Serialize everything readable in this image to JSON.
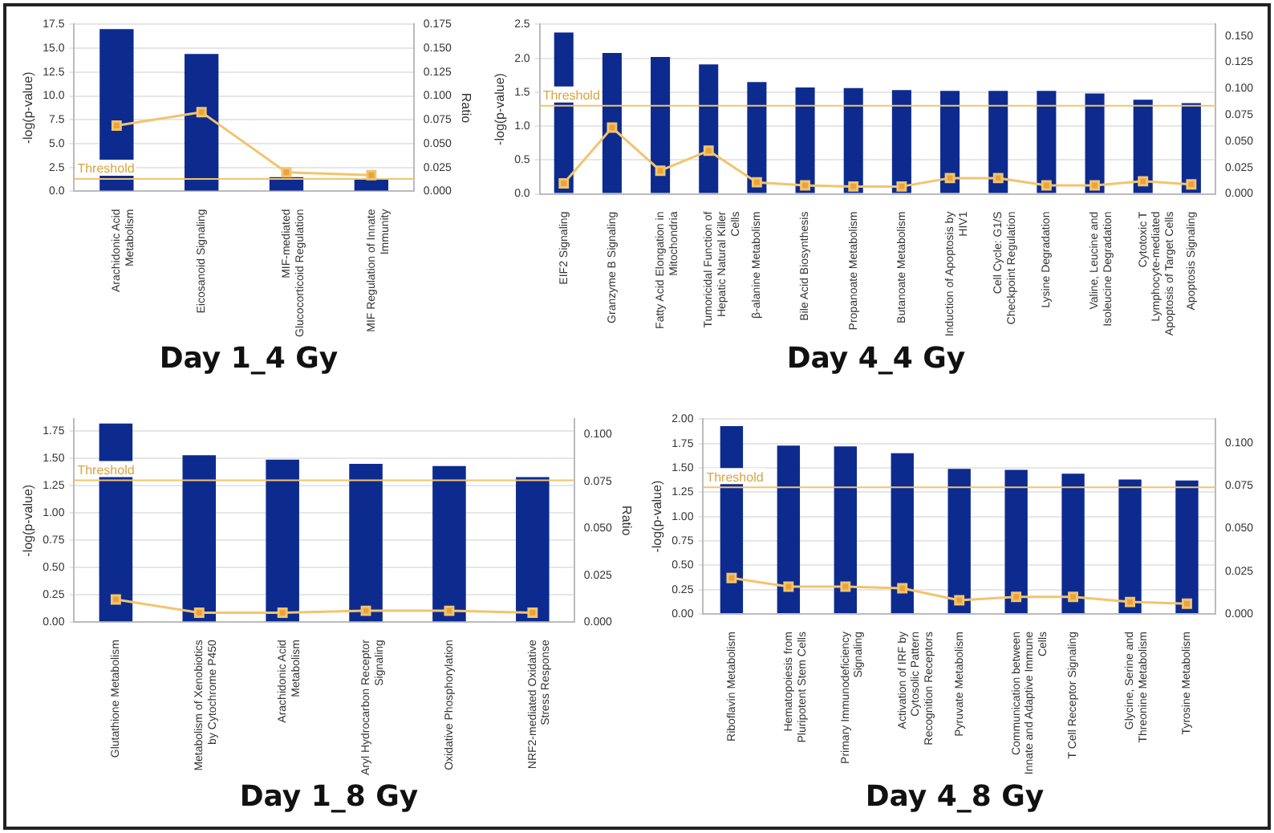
{
  "chart_data": [
    {
      "type": "bar",
      "title": "Day 1_4 Gy",
      "ylabel": "-log(p-value)",
      "y2label": "Ratio",
      "categories": [
        "Arachidonic Acid Metabolism",
        "Eicosanoid Signaling",
        "MIF-mediated Glucocorticoid Regulation",
        "MIF Regulation of Innate Immunity"
      ],
      "series": [
        {
          "color": "#0d2b8f",
          "values": [
            17.0,
            14.4,
            1.5,
            1.3
          ]
        },
        {
          "type": "line",
          "axis": "y2",
          "color": "#f2c46e",
          "values": [
            0.069,
            0.083,
            0.02,
            0.017
          ]
        }
      ],
      "ylim": [
        0,
        17.5
      ],
      "yticks": [
        {
          "value": 0,
          "label": "0.0"
        },
        {
          "value": 2.5,
          "label": "2.5"
        },
        {
          "value": 5,
          "label": "5.0"
        },
        {
          "value": 7.5,
          "label": "7.5"
        },
        {
          "value": 10,
          "label": "10.0"
        },
        {
          "value": 12.5,
          "label": "12.5"
        },
        {
          "value": 15,
          "label": "15.0"
        },
        {
          "value": 17.5,
          "label": "17.5"
        }
      ],
      "y2lim": [
        0,
        0.175
      ],
      "y2ticks": [
        {
          "value": 0,
          "label": "0.000"
        },
        {
          "value": 0.025,
          "label": "0.025"
        },
        {
          "value": 0.05,
          "label": "0.050"
        },
        {
          "value": 0.075,
          "label": "0.075"
        },
        {
          "value": 0.1,
          "label": "0.100"
        },
        {
          "value": 0.125,
          "label": "0.125"
        },
        {
          "value": 0.15,
          "label": "0.150"
        },
        {
          "value": 0.175,
          "label": "0.175"
        }
      ],
      "ref_lines": [
        {
          "axis": "y",
          "value": 1.3,
          "label": "Threshold",
          "color": "#f2c46e"
        }
      ],
      "grid": "y",
      "marker": "square"
    },
    {
      "type": "bar",
      "title": "Day 4_4 Gy",
      "ylabel": "-log(p-value)",
      "categories": [
        "EIF2 Signaling",
        "Granzyme B Signaling",
        "Fatty Acid Elongation in Mitochondria",
        "Tumoricidal Function of Hepatic Natural Killer Cells",
        "β-alanine Metabolism",
        "Bile Acid Biosynthesis",
        "Propanoate Metabolism",
        "Butanoate Metabolism",
        "Induction of Apoptosis by HIV1",
        "Cell Cycle: G1/S Checkpoint Regulation",
        "Lysine Degradation",
        "Valine, Leucine and Isoleucine Degradation",
        "Cytotoxic T Lymphocyte-mediated Apoptosis of Target Cells",
        "Apoptosis Signaling"
      ],
      "series": [
        {
          "color": "#0d2b8f",
          "values": [
            2.38,
            2.08,
            2.02,
            1.91,
            1.65,
            1.57,
            1.56,
            1.53,
            1.52,
            1.52,
            1.52,
            1.48,
            1.39,
            1.34
          ]
        },
        {
          "type": "line",
          "axis": "y2",
          "color": "#f2c46e",
          "values": [
            0.01,
            0.063,
            0.022,
            0.041,
            0.011,
            0.008,
            0.007,
            0.007,
            0.015,
            0.015,
            0.008,
            0.008,
            0.012,
            0.009
          ]
        }
      ],
      "ylim": [
        0,
        2.5
      ],
      "yticks": [
        {
          "value": 0,
          "label": "0.0"
        },
        {
          "value": 0.5,
          "label": "0.5"
        },
        {
          "value": 1,
          "label": "1.0"
        },
        {
          "value": 1.5,
          "label": "1.5"
        },
        {
          "value": 2,
          "label": "2.0"
        },
        {
          "value": 2.5,
          "label": "2.5"
        }
      ],
      "y2lim": [
        0,
        0.161
      ],
      "y2ticks": [
        {
          "value": 0,
          "label": "0.000"
        },
        {
          "value": 0.025,
          "label": "0.025"
        },
        {
          "value": 0.05,
          "label": "0.050"
        },
        {
          "value": 0.075,
          "label": "0.075"
        },
        {
          "value": 0.1,
          "label": "0.100"
        },
        {
          "value": 0.125,
          "label": "0.125"
        },
        {
          "value": 0.15,
          "label": "0.150"
        }
      ],
      "ref_lines": [
        {
          "axis": "y",
          "value": 1.3,
          "label": "Threshold",
          "color": "#f2c46e"
        }
      ],
      "grid": "y",
      "marker": "square"
    },
    {
      "type": "bar",
      "title": "Day 1_8 Gy",
      "ylabel": "-log(p-value)",
      "y2label": "Ratio",
      "categories": [
        "Glutathione Metabolism",
        "Metabolism of Xenobiotics by Cytochrome P450",
        "Arachidonic Acid Metabolism",
        "Aryl Hydrocarbon Receptor Signaling",
        "Oxidative Phosphorylation",
        "NRF2-mediated Oxidative Stress Response"
      ],
      "series": [
        {
          "color": "#0d2b8f",
          "values": [
            1.82,
            1.53,
            1.49,
            1.45,
            1.43,
            1.33
          ]
        },
        {
          "type": "line",
          "axis": "y2",
          "color": "#f2c46e",
          "values": [
            0.012,
            0.005,
            0.005,
            0.006,
            0.006,
            0.005
          ]
        }
      ],
      "ylim": [
        0,
        1.86
      ],
      "yticks": [
        {
          "value": 0,
          "label": "0.00"
        },
        {
          "value": 0.25,
          "label": "0.25"
        },
        {
          "value": 0.5,
          "label": "0.50"
        },
        {
          "value": 0.75,
          "label": "0.75"
        },
        {
          "value": 1,
          "label": "1.00"
        },
        {
          "value": 1.25,
          "label": "1.25"
        },
        {
          "value": 1.5,
          "label": "1.50"
        },
        {
          "value": 1.75,
          "label": "1.75"
        }
      ],
      "y2lim": [
        0,
        0.108
      ],
      "y2ticks": [
        {
          "value": 0,
          "label": "0.000"
        },
        {
          "value": 0.025,
          "label": "0.025"
        },
        {
          "value": 0.05,
          "label": "0.050"
        },
        {
          "value": 0.075,
          "label": "0.075"
        },
        {
          "value": 0.1,
          "label": "0.100"
        }
      ],
      "ref_lines": [
        {
          "axis": "y",
          "value": 1.3,
          "label": "Threshold",
          "color": "#f2c46e"
        }
      ],
      "grid": "y",
      "marker": "square"
    },
    {
      "type": "bar",
      "title": "Day 4_8 Gy",
      "ylabel": "-log(p-value)",
      "categories": [
        "Riboflavin Metabolism",
        "Hematopoiesis from Pluripotent Stem Cells",
        "Primary Immunodeficiency Signaling",
        "Activation of IRF by Cytosolic Pattern Recognition Receptors",
        "Pyruvate Metabolism",
        "Communication between Innate and Adaptive Immune Cells",
        "T Cell Receptor Signaling",
        "Glycine, Serine and Threonine Metabolism",
        "Tyrosine Metabolism"
      ],
      "series": [
        {
          "color": "#0d2b8f",
          "values": [
            1.93,
            1.73,
            1.72,
            1.65,
            1.49,
            1.48,
            1.44,
            1.38,
            1.37
          ]
        },
        {
          "type": "line",
          "axis": "y2",
          "color": "#f2c46e",
          "values": [
            0.021,
            0.016,
            0.016,
            0.015,
            0.008,
            0.01,
            0.01,
            0.007,
            0.006
          ]
        }
      ],
      "ylim": [
        0,
        2
      ],
      "yticks": [
        {
          "value": 0,
          "label": "0.00"
        },
        {
          "value": 0.25,
          "label": "0.25"
        },
        {
          "value": 0.5,
          "label": "0.50"
        },
        {
          "value": 0.75,
          "label": "0.75"
        },
        {
          "value": 1,
          "label": "1.00"
        },
        {
          "value": 1.25,
          "label": "1.25"
        },
        {
          "value": 1.5,
          "label": "1.50"
        },
        {
          "value": 1.75,
          "label": "1.75"
        },
        {
          "value": 2,
          "label": "2.00"
        }
      ],
      "y2lim": [
        0,
        0.114
      ],
      "y2ticks": [
        {
          "value": 0,
          "label": "0.000"
        },
        {
          "value": 0.025,
          "label": "0.025"
        },
        {
          "value": 0.05,
          "label": "0.050"
        },
        {
          "value": 0.075,
          "label": "0.075"
        },
        {
          "value": 0.1,
          "label": "0.100"
        }
      ],
      "ref_lines": [
        {
          "axis": "y",
          "value": 1.3,
          "label": "Threshold",
          "color": "#f2c46e"
        }
      ],
      "grid": "y",
      "marker": "square"
    }
  ]
}
